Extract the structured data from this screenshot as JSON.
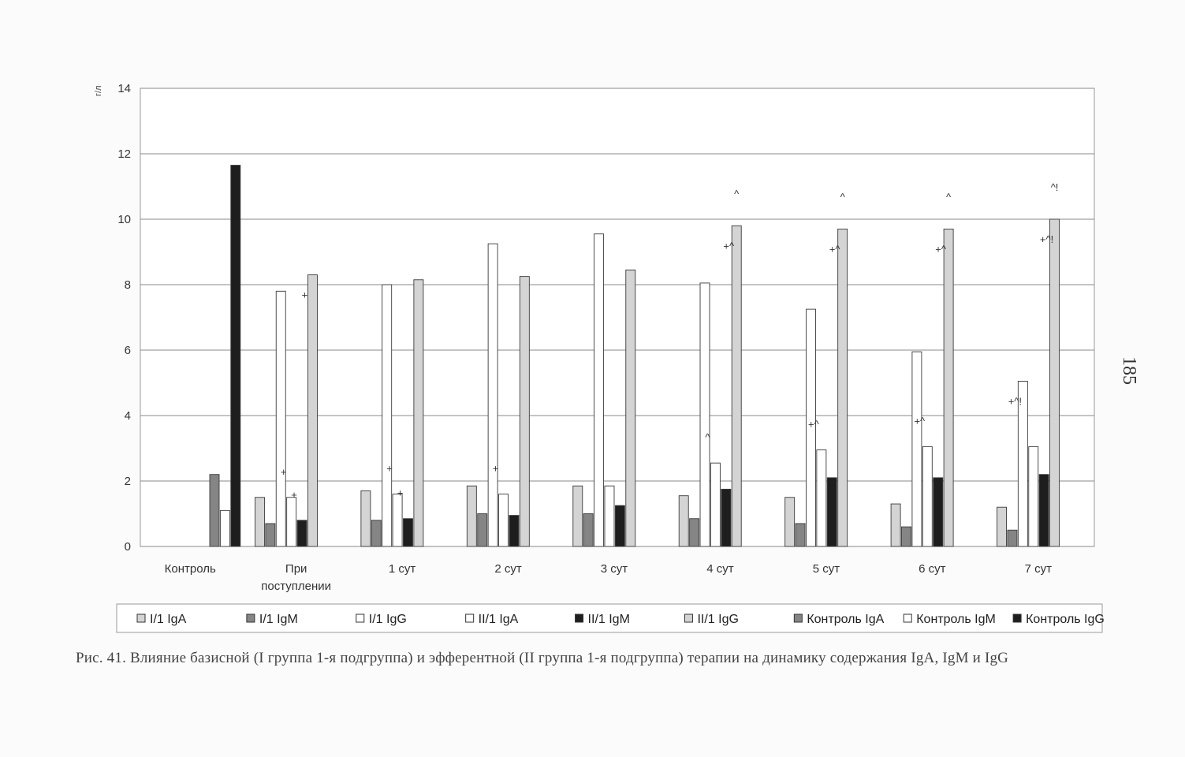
{
  "page_number": "185",
  "caption": "Рис. 41. Влияние базисной (I группа 1-я подгруппа) и эфферентной (II группа 1-я подгруппа) терапии на динамику содержания IgA, IgM и IgG",
  "colors": {
    "light_gray": "#d4d4d4",
    "mid_gray": "#858585",
    "white": "#ffffff",
    "dark": "#1e1e1e",
    "gridline": "#8a8a8a"
  },
  "chart_data": {
    "type": "bar",
    "title": "",
    "xlabel": "",
    "ylabel": "",
    "unit_label": "г/л",
    "ylim": [
      0,
      14
    ],
    "yticks": [
      0,
      2,
      4,
      6,
      8,
      10,
      12,
      14
    ],
    "grid": true,
    "legend_position": "bottom",
    "categories": [
      "Контроль",
      "При поступлении",
      "1 сут",
      "2 сут",
      "3 сут",
      "4 сут",
      "5 сут",
      "6 сут",
      "7 сут"
    ],
    "series": [
      {
        "name": "I/1 IgA",
        "color": "#d4d4d4",
        "values": [
          null,
          1.5,
          1.7,
          1.85,
          1.85,
          1.55,
          1.5,
          1.3,
          1.2
        ]
      },
      {
        "name": "I/1 IgM",
        "color": "#858585",
        "values": [
          null,
          0.7,
          0.8,
          1.0,
          1.0,
          0.85,
          0.7,
          0.6,
          0.5
        ]
      },
      {
        "name": "I/1 IgG",
        "color": "#ffffff",
        "values": [
          null,
          7.8,
          8.0,
          9.25,
          9.55,
          8.05,
          7.25,
          5.95,
          5.05
        ]
      },
      {
        "name": "II/1 IgA",
        "color": "#ffffff",
        "values": [
          null,
          1.5,
          1.6,
          1.6,
          1.85,
          2.55,
          2.95,
          3.05,
          3.05
        ]
      },
      {
        "name": "II/1 IgM",
        "color": "#1e1e1e",
        "values": [
          null,
          0.8,
          0.85,
          0.95,
          1.25,
          1.75,
          2.1,
          2.1,
          2.2
        ]
      },
      {
        "name": "II/1 IgG",
        "color": "#d4d4d4",
        "values": [
          null,
          8.3,
          8.15,
          8.25,
          8.45,
          9.8,
          9.7,
          9.7,
          10.0
        ]
      },
      {
        "name": "Контроль IgA",
        "color": "#858585",
        "values": [
          2.2,
          null,
          null,
          null,
          null,
          null,
          null,
          null,
          null
        ]
      },
      {
        "name": "Контроль IgM",
        "color": "#ffffff",
        "values": [
          1.1,
          null,
          null,
          null,
          null,
          null,
          null,
          null,
          null
        ]
      },
      {
        "name": "Контроль IgG",
        "color": "#1e1e1e",
        "values": [
          11.65,
          null,
          null,
          null,
          null,
          null,
          null,
          null,
          null
        ]
      }
    ],
    "annotations": [
      {
        "category": 1,
        "series": 3,
        "text": "+"
      },
      {
        "category": 1,
        "series": 4,
        "text": "+"
      },
      {
        "category": 1,
        "series": 5,
        "text": "+"
      },
      {
        "category": 2,
        "series": 3,
        "text": "+"
      },
      {
        "category": 2,
        "series": 4,
        "text": "+"
      },
      {
        "category": 3,
        "series": 3,
        "text": "+"
      },
      {
        "category": 5,
        "series": 3,
        "text": "^"
      },
      {
        "category": 5,
        "series": 5,
        "text": "+^"
      },
      {
        "category": 5,
        "series": 5,
        "text": "^",
        "top": true
      },
      {
        "category": 6,
        "series": 3,
        "text": "+^"
      },
      {
        "category": 6,
        "series": 5,
        "text": "+^"
      },
      {
        "category": 6,
        "series": 5,
        "text": "^",
        "top": true
      },
      {
        "category": 7,
        "series": 3,
        "text": "+^"
      },
      {
        "category": 7,
        "series": 5,
        "text": "+^"
      },
      {
        "category": 7,
        "series": 5,
        "text": "^",
        "top": true
      },
      {
        "category": 8,
        "series": 2,
        "text": "+^!"
      },
      {
        "category": 8,
        "series": 5,
        "text": "+^!"
      },
      {
        "category": 8,
        "series": 5,
        "text": "^!",
        "top": true
      }
    ]
  }
}
